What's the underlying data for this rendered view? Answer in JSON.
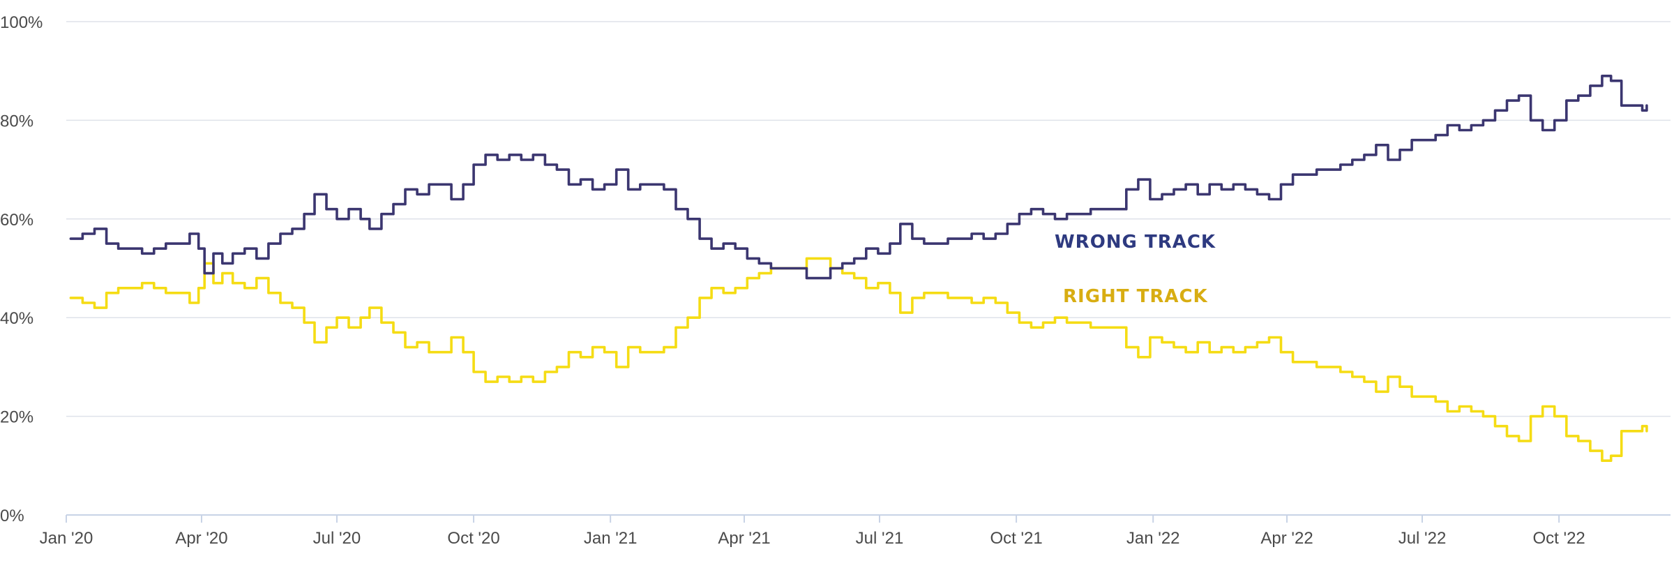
{
  "chart_data": {
    "type": "line",
    "title": "",
    "xlabel": "",
    "ylabel": "",
    "x_range": [
      "2020-01-01",
      "2022-12-15"
    ],
    "ylim": [
      0,
      100
    ],
    "y_ticks": [
      0,
      20,
      40,
      60,
      80,
      100
    ],
    "y_tick_labels": [
      "0%",
      "20%",
      "40%",
      "60%",
      "80%",
      "100%"
    ],
    "x_ticks": [
      "2020-01-01",
      "2020-04-01",
      "2020-07-01",
      "2020-10-01",
      "2021-01-01",
      "2021-04-01",
      "2021-07-01",
      "2021-10-01",
      "2022-01-01",
      "2022-04-01",
      "2022-07-01",
      "2022-10-01"
    ],
    "x_tick_labels": [
      "Jan '20",
      "Apr '20",
      "Jul '20",
      "Oct '20",
      "Jan '21",
      "Apr '21",
      "Jul '21",
      "Oct '21",
      "Jan '22",
      "Apr '22",
      "Jul '22",
      "Oct '22"
    ],
    "grid": true,
    "series": [
      {
        "name": "WRONG TRACK",
        "color": "#3b3670",
        "label_color": "#2e3a80",
        "points": [
          [
            "2020-01-04",
            56
          ],
          [
            "2020-01-12",
            57
          ],
          [
            "2020-01-20",
            58
          ],
          [
            "2020-01-28",
            55
          ],
          [
            "2020-02-05",
            54
          ],
          [
            "2020-02-13",
            54
          ],
          [
            "2020-02-21",
            53
          ],
          [
            "2020-02-29",
            54
          ],
          [
            "2020-03-08",
            55
          ],
          [
            "2020-03-16",
            55
          ],
          [
            "2020-03-24",
            57
          ],
          [
            "2020-03-30",
            54
          ],
          [
            "2020-04-03",
            49
          ],
          [
            "2020-04-09",
            53
          ],
          [
            "2020-04-15",
            51
          ],
          [
            "2020-04-22",
            53
          ],
          [
            "2020-04-30",
            54
          ],
          [
            "2020-05-08",
            52
          ],
          [
            "2020-05-16",
            55
          ],
          [
            "2020-05-24",
            57
          ],
          [
            "2020-06-01",
            58
          ],
          [
            "2020-06-09",
            61
          ],
          [
            "2020-06-16",
            65
          ],
          [
            "2020-06-24",
            62
          ],
          [
            "2020-07-01",
            60
          ],
          [
            "2020-07-09",
            62
          ],
          [
            "2020-07-17",
            60
          ],
          [
            "2020-07-23",
            58
          ],
          [
            "2020-07-31",
            61
          ],
          [
            "2020-08-08",
            63
          ],
          [
            "2020-08-16",
            66
          ],
          [
            "2020-08-24",
            65
          ],
          [
            "2020-09-01",
            67
          ],
          [
            "2020-09-09",
            67
          ],
          [
            "2020-09-16",
            64
          ],
          [
            "2020-09-24",
            67
          ],
          [
            "2020-10-01",
            71
          ],
          [
            "2020-10-09",
            73
          ],
          [
            "2020-10-17",
            72
          ],
          [
            "2020-10-25",
            73
          ],
          [
            "2020-11-02",
            72
          ],
          [
            "2020-11-10",
            73
          ],
          [
            "2020-11-18",
            71
          ],
          [
            "2020-11-26",
            70
          ],
          [
            "2020-12-04",
            67
          ],
          [
            "2020-12-12",
            68
          ],
          [
            "2020-12-20",
            66
          ],
          [
            "2020-12-28",
            67
          ],
          [
            "2021-01-05",
            70
          ],
          [
            "2021-01-13",
            66
          ],
          [
            "2021-01-21",
            67
          ],
          [
            "2021-01-29",
            67
          ],
          [
            "2021-02-06",
            66
          ],
          [
            "2021-02-14",
            62
          ],
          [
            "2021-02-22",
            60
          ],
          [
            "2021-03-02",
            56
          ],
          [
            "2021-03-10",
            54
          ],
          [
            "2021-03-18",
            55
          ],
          [
            "2021-03-26",
            54
          ],
          [
            "2021-04-03",
            52
          ],
          [
            "2021-04-11",
            51
          ],
          [
            "2021-04-19",
            50
          ],
          [
            "2021-04-27",
            50
          ],
          [
            "2021-05-05",
            50
          ],
          [
            "2021-05-13",
            48
          ],
          [
            "2021-05-21",
            48
          ],
          [
            "2021-05-29",
            50
          ],
          [
            "2021-06-06",
            51
          ],
          [
            "2021-06-14",
            52
          ],
          [
            "2021-06-22",
            54
          ],
          [
            "2021-06-30",
            53
          ],
          [
            "2021-07-08",
            55
          ],
          [
            "2021-07-15",
            59
          ],
          [
            "2021-07-23",
            56
          ],
          [
            "2021-07-31",
            55
          ],
          [
            "2021-08-08",
            55
          ],
          [
            "2021-08-16",
            56
          ],
          [
            "2021-08-24",
            56
          ],
          [
            "2021-09-01",
            57
          ],
          [
            "2021-09-09",
            56
          ],
          [
            "2021-09-17",
            57
          ],
          [
            "2021-09-25",
            59
          ],
          [
            "2021-10-03",
            61
          ],
          [
            "2021-10-11",
            62
          ],
          [
            "2021-10-19",
            61
          ],
          [
            "2021-10-27",
            60
          ],
          [
            "2021-11-04",
            61
          ],
          [
            "2021-11-12",
            61
          ],
          [
            "2021-11-20",
            62
          ],
          [
            "2021-11-28",
            62
          ],
          [
            "2021-12-06",
            62
          ],
          [
            "2021-12-14",
            66
          ],
          [
            "2021-12-22",
            68
          ],
          [
            "2021-12-30",
            64
          ],
          [
            "2022-01-07",
            65
          ],
          [
            "2022-01-15",
            66
          ],
          [
            "2022-01-23",
            67
          ],
          [
            "2022-01-31",
            65
          ],
          [
            "2022-02-08",
            67
          ],
          [
            "2022-02-16",
            66
          ],
          [
            "2022-02-24",
            67
          ],
          [
            "2022-03-04",
            66
          ],
          [
            "2022-03-12",
            65
          ],
          [
            "2022-03-20",
            64
          ],
          [
            "2022-03-28",
            67
          ],
          [
            "2022-04-05",
            69
          ],
          [
            "2022-04-13",
            69
          ],
          [
            "2022-04-21",
            70
          ],
          [
            "2022-04-29",
            70
          ],
          [
            "2022-05-07",
            71
          ],
          [
            "2022-05-15",
            72
          ],
          [
            "2022-05-23",
            73
          ],
          [
            "2022-05-31",
            75
          ],
          [
            "2022-06-08",
            72
          ],
          [
            "2022-06-16",
            74
          ],
          [
            "2022-06-24",
            76
          ],
          [
            "2022-07-02",
            76
          ],
          [
            "2022-07-10",
            77
          ],
          [
            "2022-07-18",
            79
          ],
          [
            "2022-07-26",
            78
          ],
          [
            "2022-08-03",
            79
          ],
          [
            "2022-08-11",
            80
          ],
          [
            "2022-08-19",
            82
          ],
          [
            "2022-08-27",
            84
          ],
          [
            "2022-09-04",
            85
          ],
          [
            "2022-09-12",
            80
          ],
          [
            "2022-09-20",
            78
          ],
          [
            "2022-09-28",
            80
          ],
          [
            "2022-10-06",
            84
          ],
          [
            "2022-10-14",
            85
          ],
          [
            "2022-10-22",
            87
          ],
          [
            "2022-10-30",
            89
          ],
          [
            "2022-11-05",
            88
          ],
          [
            "2022-11-12",
            83
          ],
          [
            "2022-11-20",
            83
          ],
          [
            "2022-11-26",
            82
          ],
          [
            "2022-11-29",
            83
          ]
        ]
      },
      {
        "name": "RIGHT TRACK",
        "color": "#f5dc14",
        "label_color": "#d8ad12",
        "points": [
          [
            "2020-01-04",
            44
          ],
          [
            "2020-01-12",
            43
          ],
          [
            "2020-01-20",
            42
          ],
          [
            "2020-01-28",
            45
          ],
          [
            "2020-02-05",
            46
          ],
          [
            "2020-02-13",
            46
          ],
          [
            "2020-02-21",
            47
          ],
          [
            "2020-02-29",
            46
          ],
          [
            "2020-03-08",
            45
          ],
          [
            "2020-03-16",
            45
          ],
          [
            "2020-03-24",
            43
          ],
          [
            "2020-03-30",
            46
          ],
          [
            "2020-04-03",
            51
          ],
          [
            "2020-04-09",
            47
          ],
          [
            "2020-04-15",
            49
          ],
          [
            "2020-04-22",
            47
          ],
          [
            "2020-04-30",
            46
          ],
          [
            "2020-05-08",
            48
          ],
          [
            "2020-05-16",
            45
          ],
          [
            "2020-05-24",
            43
          ],
          [
            "2020-06-01",
            42
          ],
          [
            "2020-06-09",
            39
          ],
          [
            "2020-06-16",
            35
          ],
          [
            "2020-06-24",
            38
          ],
          [
            "2020-07-01",
            40
          ],
          [
            "2020-07-09",
            38
          ],
          [
            "2020-07-17",
            40
          ],
          [
            "2020-07-23",
            42
          ],
          [
            "2020-07-31",
            39
          ],
          [
            "2020-08-08",
            37
          ],
          [
            "2020-08-16",
            34
          ],
          [
            "2020-08-24",
            35
          ],
          [
            "2020-09-01",
            33
          ],
          [
            "2020-09-09",
            33
          ],
          [
            "2020-09-16",
            36
          ],
          [
            "2020-09-24",
            33
          ],
          [
            "2020-10-01",
            29
          ],
          [
            "2020-10-09",
            27
          ],
          [
            "2020-10-17",
            28
          ],
          [
            "2020-10-25",
            27
          ],
          [
            "2020-11-02",
            28
          ],
          [
            "2020-11-10",
            27
          ],
          [
            "2020-11-18",
            29
          ],
          [
            "2020-11-26",
            30
          ],
          [
            "2020-12-04",
            33
          ],
          [
            "2020-12-12",
            32
          ],
          [
            "2020-12-20",
            34
          ],
          [
            "2020-12-28",
            33
          ],
          [
            "2021-01-05",
            30
          ],
          [
            "2021-01-13",
            34
          ],
          [
            "2021-01-21",
            33
          ],
          [
            "2021-01-29",
            33
          ],
          [
            "2021-02-06",
            34
          ],
          [
            "2021-02-14",
            38
          ],
          [
            "2021-02-22",
            40
          ],
          [
            "2021-03-02",
            44
          ],
          [
            "2021-03-10",
            46
          ],
          [
            "2021-03-18",
            45
          ],
          [
            "2021-03-26",
            46
          ],
          [
            "2021-04-03",
            48
          ],
          [
            "2021-04-11",
            49
          ],
          [
            "2021-04-19",
            50
          ],
          [
            "2021-04-27",
            50
          ],
          [
            "2021-05-05",
            50
          ],
          [
            "2021-05-13",
            52
          ],
          [
            "2021-05-21",
            52
          ],
          [
            "2021-05-29",
            50
          ],
          [
            "2021-06-06",
            49
          ],
          [
            "2021-06-14",
            48
          ],
          [
            "2021-06-22",
            46
          ],
          [
            "2021-06-30",
            47
          ],
          [
            "2021-07-08",
            45
          ],
          [
            "2021-07-15",
            41
          ],
          [
            "2021-07-23",
            44
          ],
          [
            "2021-07-31",
            45
          ],
          [
            "2021-08-08",
            45
          ],
          [
            "2021-08-16",
            44
          ],
          [
            "2021-08-24",
            44
          ],
          [
            "2021-09-01",
            43
          ],
          [
            "2021-09-09",
            44
          ],
          [
            "2021-09-17",
            43
          ],
          [
            "2021-09-25",
            41
          ],
          [
            "2021-10-03",
            39
          ],
          [
            "2021-10-11",
            38
          ],
          [
            "2021-10-19",
            39
          ],
          [
            "2021-10-27",
            40
          ],
          [
            "2021-11-04",
            39
          ],
          [
            "2021-11-12",
            39
          ],
          [
            "2021-11-20",
            38
          ],
          [
            "2021-11-28",
            38
          ],
          [
            "2021-12-06",
            38
          ],
          [
            "2021-12-14",
            34
          ],
          [
            "2021-12-22",
            32
          ],
          [
            "2021-12-30",
            36
          ],
          [
            "2022-01-07",
            35
          ],
          [
            "2022-01-15",
            34
          ],
          [
            "2022-01-23",
            33
          ],
          [
            "2022-01-31",
            35
          ],
          [
            "2022-02-08",
            33
          ],
          [
            "2022-02-16",
            34
          ],
          [
            "2022-02-24",
            33
          ],
          [
            "2022-03-04",
            34
          ],
          [
            "2022-03-12",
            35
          ],
          [
            "2022-03-20",
            36
          ],
          [
            "2022-03-28",
            33
          ],
          [
            "2022-04-05",
            31
          ],
          [
            "2022-04-13",
            31
          ],
          [
            "2022-04-21",
            30
          ],
          [
            "2022-04-29",
            30
          ],
          [
            "2022-05-07",
            29
          ],
          [
            "2022-05-15",
            28
          ],
          [
            "2022-05-23",
            27
          ],
          [
            "2022-05-31",
            25
          ],
          [
            "2022-06-08",
            28
          ],
          [
            "2022-06-16",
            26
          ],
          [
            "2022-06-24",
            24
          ],
          [
            "2022-07-02",
            24
          ],
          [
            "2022-07-10",
            23
          ],
          [
            "2022-07-18",
            21
          ],
          [
            "2022-07-26",
            22
          ],
          [
            "2022-08-03",
            21
          ],
          [
            "2022-08-11",
            20
          ],
          [
            "2022-08-19",
            18
          ],
          [
            "2022-08-27",
            16
          ],
          [
            "2022-09-04",
            15
          ],
          [
            "2022-09-12",
            20
          ],
          [
            "2022-09-20",
            22
          ],
          [
            "2022-09-28",
            20
          ],
          [
            "2022-10-06",
            16
          ],
          [
            "2022-10-14",
            15
          ],
          [
            "2022-10-22",
            13
          ],
          [
            "2022-10-30",
            11
          ],
          [
            "2022-11-05",
            12
          ],
          [
            "2022-11-12",
            17
          ],
          [
            "2022-11-20",
            17
          ],
          [
            "2022-11-26",
            18
          ],
          [
            "2022-11-29",
            17
          ]
        ]
      }
    ]
  }
}
